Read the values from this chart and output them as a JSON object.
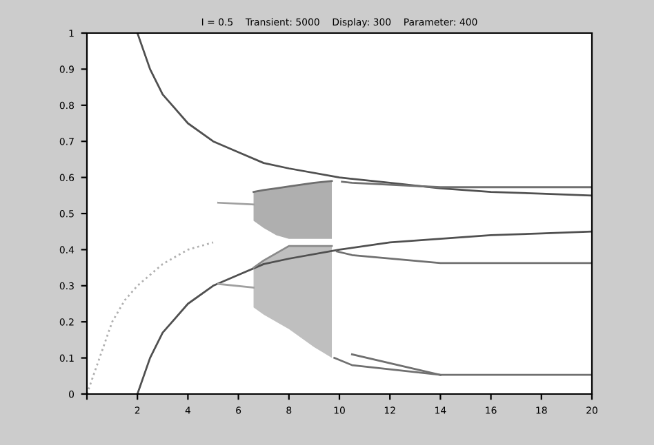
{
  "chart_data": {
    "type": "line",
    "title": "I = 0.5    Transient: 5000    Display: 300    Parameter: 400",
    "xlim": [
      0,
      20
    ],
    "xticks": [
      {
        "value": 0,
        "label": null
      },
      2,
      4,
      6,
      8,
      10,
      12,
      14,
      16,
      18,
      20
    ],
    "ylim": [
      0,
      1
    ],
    "yticks": [
      0,
      0.1,
      0.2,
      0.3,
      0.4,
      0.5,
      0.6,
      0.7,
      0.8,
      0.9,
      1
    ],
    "grid": false,
    "legend": false,
    "series": [
      {
        "color": "#505050",
        "x": [
          2,
          2.5,
          3,
          4,
          5,
          6,
          7,
          8,
          10,
          12,
          14,
          16,
          18,
          20
        ],
        "values": [
          1.0,
          0.9,
          0.83,
          0.75,
          0.7,
          0.67,
          0.64,
          0.625,
          0.6,
          0.585,
          0.57,
          0.56,
          0.555,
          0.55
        ]
      },
      {
        "color": "#505050",
        "x": [
          2,
          2.5,
          3,
          4,
          5,
          6,
          7,
          8,
          10,
          12,
          14,
          16,
          18,
          20
        ],
        "values": [
          0,
          0.1,
          0.17,
          0.25,
          0.3,
          0.33,
          0.36,
          0.375,
          0.4,
          0.42,
          0.43,
          0.44,
          0.445,
          0.45
        ]
      },
      {
        "color": "#b0b0b0",
        "line_style": "dotted",
        "x": [
          0,
          0.5,
          1,
          1.5,
          2,
          3,
          4,
          5
        ],
        "values": [
          0,
          0.1,
          0.2,
          0.26,
          0.3,
          0.36,
          0.4,
          0.42
        ]
      },
      {
        "color": "#a0a0a0",
        "x": [
          5.2,
          6.6
        ],
        "values": [
          0.53,
          0.525
        ]
      },
      {
        "color": "#a0a0a0",
        "x": [
          5.2,
          6.6
        ],
        "values": [
          0.305,
          0.295
        ]
      },
      {
        "color": "#6e6e6e",
        "x": [
          6.6,
          7,
          7.5,
          8,
          9,
          9.7
        ],
        "values": [
          0.56,
          0.565,
          0.57,
          0.575,
          0.585,
          0.59
        ],
        "upper": [
          0.56,
          0.565,
          0.57,
          0.575,
          0.585,
          0.59
        ],
        "lower": [
          0.48,
          0.46,
          0.44,
          0.43,
          0.43,
          0.43
        ]
      },
      {
        "color": "#8a8a8a",
        "x": [
          6.6,
          7,
          7.5,
          8,
          9,
          9.7
        ],
        "values": [
          0.35,
          0.37,
          0.39,
          0.41,
          0.41,
          0.41
        ],
        "upper": [
          0.35,
          0.37,
          0.39,
          0.41,
          0.41,
          0.41
        ],
        "lower": [
          0.24,
          0.22,
          0.2,
          0.18,
          0.13,
          0.1
        ]
      },
      {
        "color": "#707070",
        "x": [
          10.1,
          10.5,
          14,
          20
        ],
        "values": [
          0.588,
          0.585,
          0.573,
          0.573
        ]
      },
      {
        "color": "#707070",
        "x": [
          9.9,
          10.5,
          14,
          20
        ],
        "values": [
          0.395,
          0.385,
          0.363,
          0.363
        ]
      },
      {
        "color": "#707070",
        "x": [
          9.8,
          10.5,
          14,
          20
        ],
        "values": [
          0.1,
          0.08,
          0.053,
          0.053
        ]
      },
      {
        "color": "#707070",
        "x": [
          10.5,
          14
        ],
        "values": [
          0.11,
          0.053
        ]
      }
    ]
  }
}
